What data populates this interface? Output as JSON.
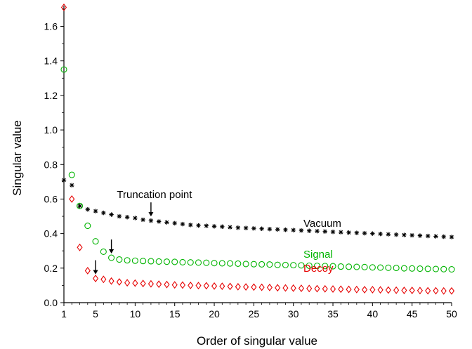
{
  "chart_data": {
    "type": "scatter",
    "xlabel": "Order of singular value",
    "ylabel": "Singular value",
    "xlim": [
      1,
      50
    ],
    "ylim": [
      0,
      1.72
    ],
    "x_ticks": [
      1,
      5,
      10,
      15,
      20,
      25,
      30,
      35,
      40,
      45,
      50
    ],
    "y_ticks": [
      0.0,
      0.2,
      0.4,
      0.6,
      0.8,
      1.0,
      1.2,
      1.4,
      1.6
    ],
    "y_tick_labels": [
      "0.0",
      "0.2",
      "0.4",
      "0.6",
      "0.8",
      "1.0",
      "1.2",
      "1.4",
      "1.6"
    ],
    "grid": false,
    "series": [
      {
        "name": "Vacuum",
        "color": "#000000",
        "marker": "asterisk",
        "x": [
          1,
          2,
          3,
          4,
          5,
          6,
          7,
          8,
          9,
          10,
          11,
          12,
          13,
          14,
          15,
          16,
          17,
          18,
          19,
          20,
          21,
          22,
          23,
          24,
          25,
          26,
          27,
          28,
          29,
          30,
          31,
          32,
          33,
          34,
          35,
          36,
          37,
          38,
          39,
          40,
          41,
          42,
          43,
          44,
          45,
          46,
          47,
          48,
          49,
          50
        ],
        "values": [
          0.71,
          0.68,
          0.56,
          0.54,
          0.53,
          0.52,
          0.51,
          0.5,
          0.495,
          0.49,
          0.48,
          0.475,
          0.47,
          0.465,
          0.46,
          0.455,
          0.45,
          0.447,
          0.445,
          0.442,
          0.44,
          0.437,
          0.434,
          0.432,
          0.43,
          0.428,
          0.426,
          0.424,
          0.422,
          0.42,
          0.418,
          0.416,
          0.414,
          0.412,
          0.41,
          0.408,
          0.406,
          0.404,
          0.402,
          0.4,
          0.398,
          0.396,
          0.394,
          0.392,
          0.39,
          0.388,
          0.386,
          0.384,
          0.382,
          0.38
        ]
      },
      {
        "name": "Signal",
        "color": "#00b400",
        "marker": "circle",
        "x": [
          1,
          2,
          3,
          4,
          5,
          6,
          7,
          8,
          9,
          10,
          11,
          12,
          13,
          14,
          15,
          16,
          17,
          18,
          19,
          20,
          21,
          22,
          23,
          24,
          25,
          26,
          27,
          28,
          29,
          30,
          31,
          32,
          33,
          34,
          35,
          36,
          37,
          38,
          39,
          40,
          41,
          42,
          43,
          44,
          45,
          46,
          47,
          48,
          49,
          50
        ],
        "values": [
          1.35,
          0.74,
          0.56,
          0.445,
          0.355,
          0.295,
          0.26,
          0.25,
          0.245,
          0.243,
          0.241,
          0.24,
          0.238,
          0.237,
          0.236,
          0.234,
          0.233,
          0.232,
          0.231,
          0.229,
          0.228,
          0.227,
          0.226,
          0.224,
          0.223,
          0.222,
          0.221,
          0.219,
          0.218,
          0.217,
          0.216,
          0.214,
          0.213,
          0.212,
          0.211,
          0.209,
          0.208,
          0.207,
          0.206,
          0.204,
          0.203,
          0.202,
          0.201,
          0.199,
          0.198,
          0.197,
          0.196,
          0.195,
          0.194,
          0.193
        ]
      },
      {
        "name": "Decoy",
        "color": "#e60000",
        "marker": "diamond",
        "x": [
          1,
          2,
          3,
          4,
          5,
          6,
          7,
          8,
          9,
          10,
          11,
          12,
          13,
          14,
          15,
          16,
          17,
          18,
          19,
          20,
          21,
          22,
          23,
          24,
          25,
          26,
          27,
          28,
          29,
          30,
          31,
          32,
          33,
          34,
          35,
          36,
          37,
          38,
          39,
          40,
          41,
          42,
          43,
          44,
          45,
          46,
          47,
          48,
          49,
          50
        ],
        "values": [
          1.71,
          0.6,
          0.32,
          0.185,
          0.14,
          0.135,
          0.125,
          0.12,
          0.115,
          0.113,
          0.111,
          0.109,
          0.107,
          0.105,
          0.103,
          0.102,
          0.1,
          0.099,
          0.098,
          0.096,
          0.095,
          0.094,
          0.092,
          0.091,
          0.09,
          0.089,
          0.088,
          0.086,
          0.085,
          0.084,
          0.083,
          0.082,
          0.081,
          0.08,
          0.079,
          0.078,
          0.077,
          0.076,
          0.075,
          0.075,
          0.074,
          0.073,
          0.072,
          0.071,
          0.071,
          0.07,
          0.069,
          0.069,
          0.068,
          0.068
        ]
      }
    ],
    "annotations": [
      {
        "text": "Truncation point",
        "color": "#000000",
        "arrow_points_to": {
          "x": 12,
          "y": 0.475
        }
      },
      {
        "text": "",
        "color": "#000000",
        "arrow_points_to": {
          "x": 7,
          "y": 0.26
        }
      },
      {
        "text": "",
        "color": "#000000",
        "arrow_points_to": {
          "x": 5,
          "y": 0.14
        }
      }
    ],
    "series_labels": [
      {
        "series": "Vacuum",
        "text": "Vacuum",
        "color": "#000000"
      },
      {
        "series": "Signal",
        "text": "Signal",
        "color": "#00b400"
      },
      {
        "series": "Decoy",
        "text": "Decoy",
        "color": "#e60000"
      }
    ]
  }
}
